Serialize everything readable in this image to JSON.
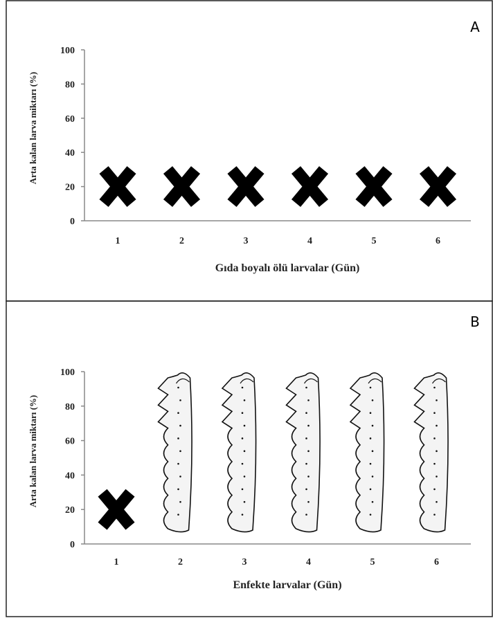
{
  "chart_data": [
    {
      "type": "icon",
      "panel_label": "A",
      "ylabel": "Arta kalan larva miktarı (%)",
      "xlabel": "Gıda boyalı ölü larvalar (Gün)",
      "categories": [
        "1",
        "2",
        "3",
        "4",
        "5",
        "6"
      ],
      "markers": [
        "x",
        "x",
        "x",
        "x",
        "x",
        "x"
      ],
      "ylim": [
        0,
        100
      ],
      "yticks": [
        0,
        20,
        40,
        60,
        80,
        100
      ]
    },
    {
      "type": "icon",
      "panel_label": "B",
      "ylabel": "Arta kalan larva miktarı (%)",
      "xlabel": "Enfekte larvalar (Gün)",
      "categories": [
        "1",
        "2",
        "3",
        "4",
        "5",
        "6"
      ],
      "markers": [
        "x",
        "larva",
        "larva",
        "larva",
        "larva",
        "larva"
      ],
      "ylim": [
        0,
        100
      ],
      "yticks": [
        0,
        20,
        40,
        60,
        80,
        100
      ]
    }
  ]
}
